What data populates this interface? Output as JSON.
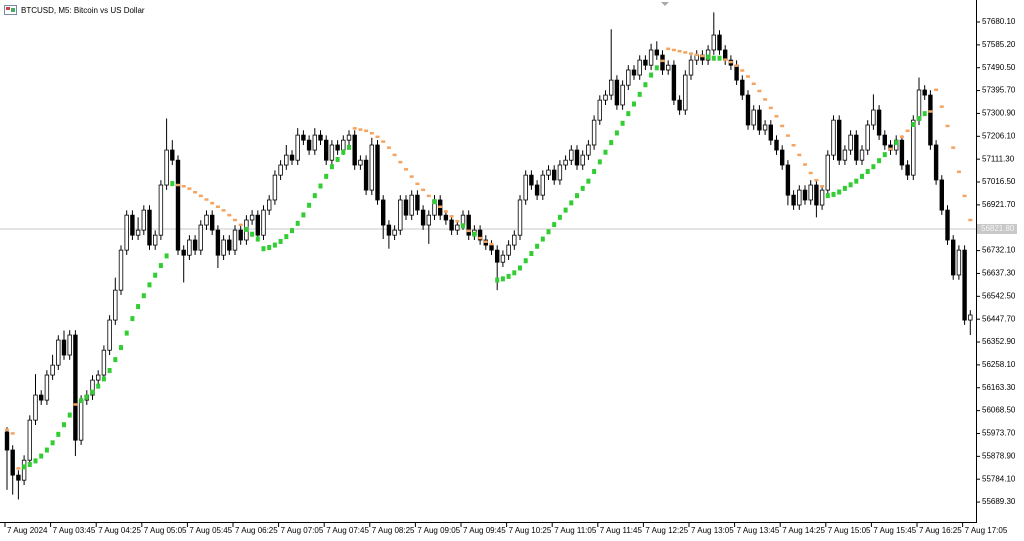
{
  "chart_data": {
    "type": "candlestick",
    "title": "BTCUSD, M5: Bitcoin vs US Dollar",
    "categories": [
      "7 Aug 2024",
      null,
      null,
      null,
      null,
      null,
      null,
      null,
      "7 Aug 03:45",
      null,
      null,
      null,
      null,
      null,
      null,
      null,
      "7 Aug 04:25",
      null,
      null,
      null,
      null,
      null,
      null,
      null,
      "7 Aug 05:05",
      null,
      null,
      null,
      null,
      null,
      null,
      null,
      "7 Aug 05:45",
      null,
      null,
      null,
      null,
      null,
      null,
      null,
      "7 Aug 06:25",
      null,
      null,
      null,
      null,
      null,
      null,
      null,
      "7 Aug 07:05",
      null,
      null,
      null,
      null,
      null,
      null,
      null,
      "7 Aug 07:45",
      null,
      null,
      null,
      null,
      null,
      null,
      null,
      "7 Aug 08:25",
      null,
      null,
      null,
      null,
      null,
      null,
      null,
      "7 Aug 09:05",
      null,
      null,
      null,
      null,
      null,
      null,
      null,
      "7 Aug 09:45",
      null,
      null,
      null,
      null,
      null,
      null,
      null,
      "7 Aug 10:25",
      null,
      null,
      null,
      null,
      null,
      null,
      null,
      "7 Aug 11:05",
      null,
      null,
      null,
      null,
      null,
      null,
      null,
      "7 Aug 11:45",
      null,
      null,
      null,
      null,
      null,
      null,
      null,
      "7 Aug 12:25",
      null,
      null,
      null,
      null,
      null,
      null,
      null,
      "7 Aug 13:05",
      null,
      null,
      null,
      null,
      null,
      null,
      null,
      "7 Aug 13:45",
      null,
      null,
      null,
      null,
      null,
      null,
      null,
      "7 Aug 14:25",
      null,
      null,
      null,
      null,
      null,
      null,
      null,
      "7 Aug 15:05",
      null,
      null,
      null,
      null,
      null,
      null,
      null,
      "7 Aug 15:45",
      null,
      null,
      null,
      null,
      null,
      null,
      null,
      "7 Aug 16:25",
      null,
      null,
      null,
      null,
      null,
      null,
      null,
      "7 Aug 17:05",
      null
    ],
    "first_open": 55980,
    "close": [
      55905,
      55801,
      55780,
      55863,
      56029,
      56133,
      56112,
      56216,
      56257,
      56361,
      56299,
      56382,
      55946,
      56112,
      56133,
      56195,
      56216,
      56319,
      56444,
      56568,
      56734,
      56879,
      56796,
      56817,
      56900,
      56755,
      56796,
      57004,
      57149,
      57107,
      56734,
      56713,
      56776,
      56734,
      56838,
      56879,
      56817,
      56713,
      56776,
      56734,
      56817,
      56776,
      56859,
      56879,
      56796,
      56900,
      56942,
      57045,
      57087,
      57128,
      57107,
      57211,
      57190,
      57149,
      57211,
      57190,
      57107,
      57170,
      57149,
      57190,
      57211,
      57087,
      57107,
      56983,
      57170,
      56942,
      56838,
      56796,
      56817,
      56942,
      56879,
      56962,
      56900,
      56838,
      56879,
      56942,
      56879,
      56859,
      56817,
      56838,
      56879,
      56796,
      56817,
      56776,
      56755,
      56734,
      56684,
      56713,
      56755,
      56796,
      56942,
      57045,
      57004,
      56962,
      57045,
      57066,
      57025,
      57087,
      57107,
      57149,
      57087,
      57128,
      57170,
      57273,
      57356,
      57377,
      57439,
      57336,
      57418,
      57481,
      57460,
      57522,
      57501,
      57564,
      57543,
      57481,
      57501,
      57356,
      57315,
      57460,
      57522,
      57543,
      57522,
      57564,
      57626,
      57564,
      57522,
      57501,
      57439,
      57377,
      57253,
      57315,
      57232,
      57253,
      57190,
      57149,
      57087,
      56962,
      56921,
      56983,
      56942,
      57004,
      56921,
      56983,
      57128,
      57273,
      57107,
      57149,
      57211,
      57107,
      57149,
      57253,
      57315,
      57211,
      57170,
      57149,
      57190,
      57087,
      57045,
      57273,
      57398,
      57377,
      57170,
      57025,
      56900,
      56776,
      56631,
      56734,
      56444,
      56465
    ],
    "high": [
      56000,
      55925,
      55821,
      55883,
      56049,
      56220,
      56153,
      56236,
      56300,
      56381,
      56400,
      56402,
      56402,
      56132,
      56153,
      56215,
      56236,
      56339,
      56464,
      56620,
      56754,
      56899,
      56899,
      56870,
      56920,
      56920,
      56816,
      57024,
      57280,
      57190,
      57127,
      56754,
      56796,
      56796,
      56858,
      56899,
      56899,
      56837,
      56796,
      56796,
      56837,
      56837,
      56879,
      56900,
      56899,
      56920,
      56962,
      57065,
      57107,
      57170,
      57148,
      57240,
      57231,
      57210,
      57240,
      57231,
      57210,
      57190,
      57190,
      57210,
      57231,
      57231,
      57127,
      57127,
      57200,
      57190,
      56962,
      56858,
      56837,
      56962,
      56962,
      56982,
      56982,
      56920,
      56899,
      56962,
      56962,
      56899,
      56879,
      56858,
      56899,
      56899,
      56837,
      56837,
      56796,
      56775,
      56754,
      56733,
      56775,
      56816,
      56962,
      57065,
      57065,
      57024,
      57065,
      57086,
      57086,
      57107,
      57127,
      57169,
      57169,
      57148,
      57190,
      57293,
      57376,
      57397,
      57650,
      57459,
      57438,
      57501,
      57501,
      57542,
      57542,
      57590,
      57600,
      57563,
      57521,
      57521,
      57376,
      57480,
      57542,
      57563,
      57563,
      57584,
      57720,
      57646,
      57584,
      57542,
      57521,
      57459,
      57397,
      57335,
      57335,
      57273,
      57273,
      57210,
      57169,
      57107,
      56982,
      57003,
      57003,
      57024,
      57024,
      57003,
      57148,
      57293,
      57293,
      57169,
      57231,
      57231,
      57169,
      57273,
      57380,
      57335,
      57231,
      57190,
      57210,
      57210,
      57107,
      57293,
      57450,
      57418,
      57397,
      57190,
      57045,
      56920,
      56796,
      56754,
      56754,
      56485
    ],
    "low": [
      55740,
      55720,
      55700,
      55760,
      55843,
      56009,
      56092,
      56092,
      56196,
      56237,
      56279,
      56279,
      55880,
      55926,
      56092,
      56113,
      56175,
      56196,
      56299,
      56424,
      56548,
      56714,
      56776,
      56776,
      56797,
      56735,
      56735,
      56776,
      56984,
      57087,
      56714,
      56600,
      56693,
      56714,
      56714,
      56818,
      56797,
      56660,
      56693,
      56714,
      56714,
      56756,
      56756,
      56839,
      56776,
      56776,
      56880,
      56922,
      57025,
      57067,
      57087,
      57087,
      57170,
      57129,
      57129,
      57170,
      57087,
      57087,
      57129,
      57129,
      57170,
      57067,
      57067,
      56963,
      56963,
      56922,
      56780,
      56740,
      56776,
      56797,
      56859,
      56859,
      56880,
      56818,
      56760,
      56859,
      56859,
      56839,
      56797,
      56797,
      56818,
      56776,
      56776,
      56756,
      56735,
      56714,
      56568,
      56664,
      56693,
      56735,
      56776,
      56922,
      56984,
      56942,
      56942,
      57025,
      57005,
      57005,
      57067,
      57087,
      57067,
      57067,
      57108,
      57150,
      57253,
      57336,
      57357,
      57316,
      57316,
      57398,
      57440,
      57440,
      57481,
      57481,
      57523,
      57461,
      57461,
      57336,
      57295,
      57295,
      57440,
      57502,
      57502,
      57502,
      57544,
      57544,
      57502,
      57481,
      57419,
      57357,
      57233,
      57233,
      57212,
      57212,
      57170,
      57129,
      57067,
      56920,
      56901,
      56901,
      56922,
      56922,
      56870,
      56901,
      56963,
      57108,
      57087,
      57087,
      57129,
      57087,
      57087,
      57129,
      57233,
      57191,
      57150,
      57129,
      57129,
      57067,
      57025,
      57025,
      57253,
      57357,
      57150,
      57005,
      56880,
      56756,
      56611,
      56611,
      56424,
      56382
    ],
    "sar": [
      55990,
      55975,
      55830,
      55835,
      55845,
      55860,
      55880,
      55905,
      55935,
      55970,
      56010,
      56050,
      56095,
      56110,
      56125,
      56145,
      56170,
      56200,
      56235,
      56280,
      56330,
      56390,
      56450,
      56500,
      56545,
      56590,
      56630,
      56670,
      56710,
      57010,
      57005,
      57000,
      56990,
      56975,
      56960,
      56945,
      56930,
      56915,
      56900,
      56880,
      56860,
      56840,
      56820,
      56800,
      56780,
      56740,
      56745,
      56755,
      56770,
      56790,
      56815,
      56845,
      56880,
      56920,
      56960,
      57000,
      57040,
      57080,
      57110,
      57140,
      57160,
      57240,
      57235,
      57230,
      57220,
      57205,
      57185,
      57160,
      57130,
      57100,
      57070,
      57040,
      57010,
      56985,
      56960,
      56935,
      56915,
      56895,
      56875,
      56855,
      56835,
      56815,
      56800,
      56785,
      56770,
      56760,
      56610,
      56615,
      56625,
      56640,
      56660,
      56690,
      56720,
      56750,
      56780,
      56810,
      56840,
      56870,
      56900,
      56930,
      56960,
      56990,
      57020,
      57060,
      57100,
      57140,
      57180,
      57220,
      57260,
      57300,
      57340,
      57380,
      57420,
      57460,
      57490,
      57520,
      57570,
      57565,
      57560,
      57555,
      57550,
      57545,
      57540,
      57535,
      57530,
      57530,
      57525,
      57515,
      57500,
      57480,
      57455,
      57425,
      57395,
      57360,
      57325,
      57290,
      57250,
      57210,
      57170,
      57130,
      57090,
      57055,
      57025,
      57000,
      56960,
      56965,
      56975,
      56990,
      57005,
      57020,
      57040,
      57060,
      57080,
      57105,
      57130,
      57155,
      57180,
      57205,
      57230,
      57255,
      57280,
      57300,
      57310,
      57400,
      57330,
      57250,
      57160,
      57060,
      56960,
      56860
    ],
    "bull_color": "#ffffff",
    "bear_color": "#000000",
    "sar_below_color": "#32cd32",
    "sar_above_color": "#f4a460",
    "hline": {
      "value": 56821.8,
      "label": "56821.80"
    },
    "ylim": [
      55606.6,
      57771.3
    ],
    "yticks": [
      {
        "value": 57680.1,
        "label": "57680.10"
      },
      {
        "value": 57585.2,
        "label": "57585.20"
      },
      {
        "value": 57490.5,
        "label": "57490.50"
      },
      {
        "value": 57395.7,
        "label": "57395.70"
      },
      {
        "value": 57300.9,
        "label": "57300.90"
      },
      {
        "value": 57206.1,
        "label": "57206.10"
      },
      {
        "value": 57111.3,
        "label": "57111.30"
      },
      {
        "value": 57016.5,
        "label": "57016.50"
      },
      {
        "value": 56921.7,
        "label": "56921.70"
      },
      {
        "value": 56732.1,
        "label": "56732.10"
      },
      {
        "value": 56637.3,
        "label": "56637.30"
      },
      {
        "value": 56542.5,
        "label": "56542.50"
      },
      {
        "value": 56447.7,
        "label": "56447.70"
      },
      {
        "value": 56352.9,
        "label": "56352.90"
      },
      {
        "value": 56258.1,
        "label": "56258.10"
      },
      {
        "value": 56163.3,
        "label": "56163.30"
      },
      {
        "value": 56068.5,
        "label": "56068.50"
      },
      {
        "value": 55973.7,
        "label": "55973.70"
      },
      {
        "value": 55878.9,
        "label": "55878.90"
      },
      {
        "value": 55784.1,
        "label": "55784.10"
      },
      {
        "value": 55689.3,
        "label": "55689.30"
      }
    ]
  }
}
